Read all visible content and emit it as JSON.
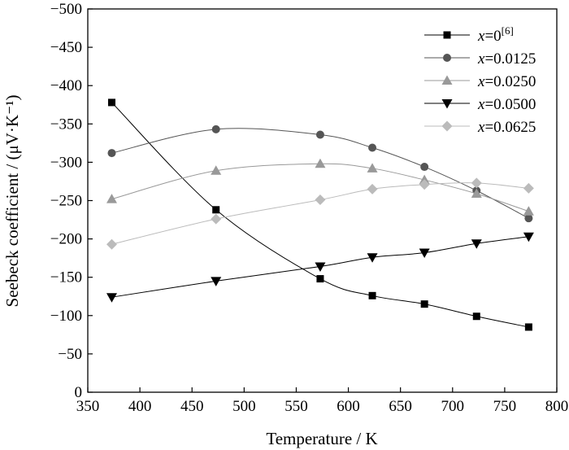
{
  "chart_data": {
    "type": "line",
    "xlabel": "Temperature / K",
    "ylabel": "Seebeck coefficient / (μV·K⁻¹)",
    "xlim": [
      350,
      800
    ],
    "ylim": [
      0,
      -500
    ],
    "xticks": [
      350,
      400,
      450,
      500,
      550,
      600,
      650,
      700,
      750,
      800
    ],
    "yticks": [
      0,
      -50,
      -100,
      -150,
      -200,
      -250,
      -300,
      -350,
      -400,
      -450,
      -500
    ],
    "grid": false,
    "legend_position": "top-right",
    "series": [
      {
        "name": "x=0[6]",
        "legend_base": "x",
        "legend_rest": "=0",
        "legend_sup": "[6]",
        "marker": "square",
        "color": "#000000",
        "x": [
          373,
          473,
          573,
          623,
          673,
          723,
          773
        ],
        "y": [
          -378,
          -238,
          -148,
          -126,
          -115,
          -99,
          -85
        ]
      },
      {
        "name": "x=0.0125",
        "legend_base": "x",
        "legend_rest": "=0.0125",
        "legend_sup": "",
        "marker": "circle",
        "color": "#555555",
        "x": [
          373,
          473,
          573,
          623,
          673,
          723,
          773
        ],
        "y": [
          -312,
          -343,
          -336,
          -319,
          -294,
          -263,
          -227
        ]
      },
      {
        "name": "x=0.0250",
        "legend_base": "x",
        "legend_rest": "=0.0250",
        "legend_sup": "",
        "marker": "triangle-up",
        "color": "#999999",
        "x": [
          373,
          473,
          573,
          623,
          673,
          723,
          773
        ],
        "y": [
          -252,
          -289,
          -298,
          -292,
          -277,
          -259,
          -236
        ]
      },
      {
        "name": "x=0.0500",
        "legend_base": "x",
        "legend_rest": "=0.0500",
        "legend_sup": "",
        "marker": "triangle-down",
        "color": "#000000",
        "x": [
          373,
          473,
          573,
          623,
          673,
          723,
          773
        ],
        "y": [
          -124,
          -145,
          -164,
          -176,
          -182,
          -194,
          -203
        ]
      },
      {
        "name": "x=0.0625",
        "legend_base": "x",
        "legend_rest": "=0.0625",
        "legend_sup": "",
        "marker": "diamond",
        "color": "#bbbbbb",
        "x": [
          373,
          473,
          573,
          623,
          673,
          723,
          773
        ],
        "y": [
          -193,
          -226,
          -251,
          -265,
          -271,
          -273,
          -266
        ]
      }
    ]
  }
}
